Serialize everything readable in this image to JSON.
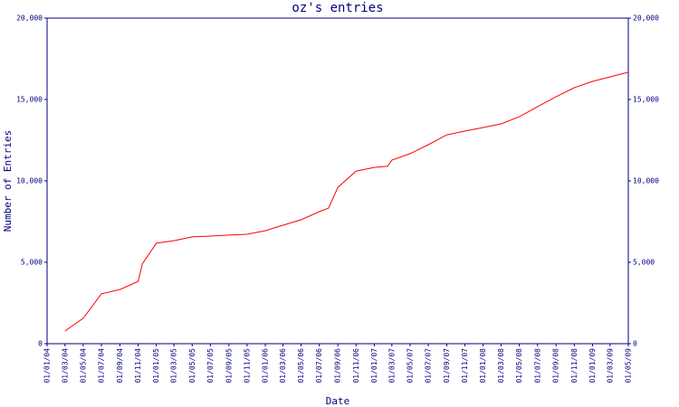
{
  "chart_data": {
    "type": "line",
    "title": "oz's entries",
    "xlabel": "Date",
    "ylabel": "Number of Entries",
    "x": [
      "01/03/04",
      "01/05/04",
      "01/07/04",
      "01/09/04",
      "01/11/04",
      "15/11/04",
      "01/01/05",
      "01/03/05",
      "01/05/05",
      "01/07/05",
      "01/09/05",
      "01/11/05",
      "01/01/06",
      "01/03/06",
      "01/05/06",
      "01/07/06",
      "01/08/06",
      "01/09/06",
      "01/11/06",
      "01/01/07",
      "15/02/07",
      "01/03/07",
      "01/05/07",
      "01/07/07",
      "01/09/07",
      "01/11/07",
      "01/01/08",
      "01/03/08",
      "01/05/08",
      "01/07/08",
      "01/09/08",
      "01/11/08",
      "01/01/09",
      "01/03/09",
      "01/05/09"
    ],
    "series": [
      {
        "name": "entries",
        "color": "#ff0000",
        "values": [
          780,
          1560,
          3060,
          3330,
          3830,
          4900,
          6170,
          6330,
          6560,
          6610,
          6670,
          6720,
          6940,
          7280,
          7610,
          8110,
          8330,
          9600,
          10600,
          10830,
          10900,
          11280,
          11670,
          12220,
          12830,
          13060,
          13280,
          13500,
          13940,
          14560,
          15170,
          15720,
          16110,
          16390,
          16670
        ]
      }
    ],
    "xlim": [
      "01/01/04",
      "01/05/09"
    ],
    "xticks": [
      "01/01/04",
      "01/03/04",
      "01/05/04",
      "01/07/04",
      "01/09/04",
      "01/11/04",
      "01/01/05",
      "01/03/05",
      "01/05/05",
      "01/07/05",
      "01/09/05",
      "01/11/05",
      "01/01/06",
      "01/03/06",
      "01/05/06",
      "01/07/06",
      "01/09/06",
      "01/11/06",
      "01/01/07",
      "01/03/07",
      "01/05/07",
      "01/07/07",
      "01/09/07",
      "01/11/07",
      "01/01/08",
      "01/03/08",
      "01/05/08",
      "01/07/08",
      "01/09/08",
      "01/11/08",
      "01/01/09",
      "01/03/09",
      "01/05/09"
    ],
    "ylim": [
      0,
      20000
    ],
    "yticks": [
      0,
      {
        "value": 5000,
        "label": "5,000"
      },
      {
        "value": 10000,
        "label": "10,000"
      },
      {
        "value": 15000,
        "label": "15,000"
      },
      {
        "value": 20000,
        "label": "20,000"
      }
    ]
  }
}
